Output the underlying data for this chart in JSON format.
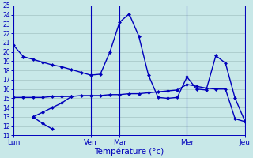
{
  "xlabel": "Température (°c)",
  "background_color": "#c8e8e8",
  "grid_color": "#9ababa",
  "line_color": "#0000bb",
  "ylim": [
    11,
    25
  ],
  "xlim": [
    0,
    24
  ],
  "yticks": [
    11,
    12,
    13,
    14,
    15,
    16,
    17,
    18,
    19,
    20,
    21,
    22,
    23,
    24,
    25
  ],
  "day_labels": [
    "Lun",
    "Ven",
    "Mar",
    "Mer",
    "Jeu"
  ],
  "day_positions": [
    0,
    8,
    11,
    18,
    24
  ],
  "figsize": [
    3.2,
    2.0
  ],
  "dpi": 100,
  "linewidth": 1.0,
  "markersize": 2.5,
  "line1_x": [
    0,
    1,
    2,
    3,
    4,
    5,
    6,
    7,
    8,
    9,
    10,
    11,
    12,
    13,
    14,
    15,
    16,
    17,
    18,
    19,
    20,
    21,
    22,
    23,
    24
  ],
  "line1_y": [
    20.7,
    19.5,
    19.2,
    18.9,
    18.6,
    18.4,
    18.1,
    17.8,
    17.5,
    17.6,
    20.0,
    23.2,
    24.1,
    21.7,
    17.5,
    15.1,
    15.0,
    15.1,
    17.3,
    16.0,
    15.9,
    19.6,
    18.8,
    15.0,
    12.6
  ],
  "line2_x": [
    0,
    1,
    2,
    3,
    4,
    5,
    6,
    7,
    8,
    9,
    10,
    11,
    12,
    13,
    14,
    15,
    16,
    17,
    18,
    19,
    20,
    21,
    22,
    23,
    24
  ],
  "line2_y": [
    15.1,
    15.1,
    15.1,
    15.1,
    15.2,
    15.2,
    15.2,
    15.3,
    15.3,
    15.3,
    15.4,
    15.4,
    15.5,
    15.5,
    15.6,
    15.7,
    15.8,
    15.9,
    16.5,
    16.3,
    16.1,
    16.0,
    16.0,
    12.8,
    12.5
  ],
  "line3_x": [
    2,
    3,
    4,
    5,
    6
  ],
  "line3_y": [
    13.0,
    13.5,
    14.0,
    14.5,
    15.2
  ],
  "line4_x": [
    2,
    3,
    4
  ],
  "line4_y": [
    13.0,
    12.3,
    11.7
  ]
}
